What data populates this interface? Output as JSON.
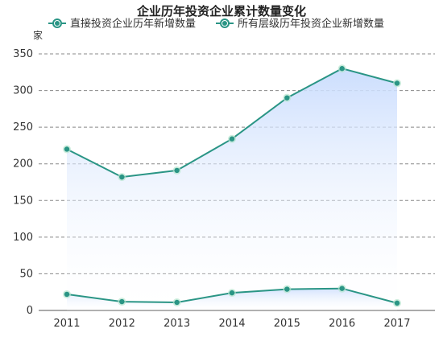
{
  "chart_data": {
    "type": "line",
    "title": "企业历年投资企业累计数量变化",
    "ylabel": "家",
    "xlabel": "",
    "categories": [
      "2011",
      "2012",
      "2013",
      "2014",
      "2015",
      "2016",
      "2017"
    ],
    "ylim": [
      0,
      350
    ],
    "yticks": [
      0,
      50,
      100,
      150,
      200,
      250,
      300,
      350
    ],
    "grid": true,
    "legend_position": "top",
    "series": [
      {
        "name": "直接投资企业历年新增数量",
        "values": [
          22,
          12,
          11,
          24,
          29,
          30,
          10
        ],
        "color": "#2a9585"
      },
      {
        "name": "所有层级历年投资企业新增数量",
        "values": [
          220,
          182,
          191,
          234,
          290,
          330,
          310
        ],
        "color": "#2a9585"
      }
    ],
    "area_fill_color": "#c9dcfd",
    "marker_fill_color": "#b7e5cf"
  }
}
